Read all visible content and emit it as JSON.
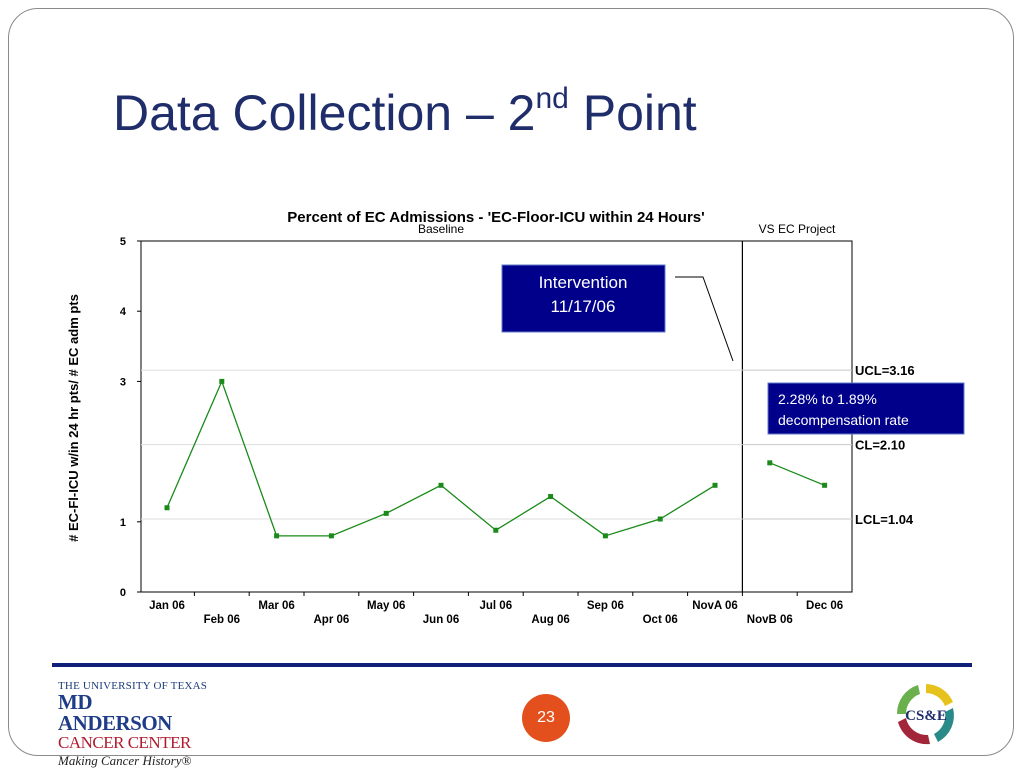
{
  "slide": {
    "title_main": "Data Collection – 2",
    "title_sup": "nd",
    "title_end": " Point",
    "page_number": "23"
  },
  "footer": {
    "logo_line1": "THE UNIVERSITY OF TEXAS",
    "logo_line2": "MD ANDERSON",
    "logo_line3": "CANCER CENTER",
    "logo_line4": "Making Cancer History®",
    "cse_logo_text": "CS&E"
  },
  "annotations": {
    "intervention_line1": "Intervention",
    "intervention_line2": "11/17/06",
    "rate_line1": "2.28% to 1.89%",
    "rate_line2": "decompensation rate",
    "baseline": "Baseline",
    "project": "VS EC Project"
  },
  "colors": {
    "title": "#1f2d6b",
    "series": "#1a8a1a",
    "annotation_box": "#00008b",
    "page_badge": "#e3501d",
    "footer_rule": "#0f1f7a"
  },
  "chart_data": {
    "type": "line",
    "title": "Percent of EC Admissions - 'EC-Floor-ICU within 24 Hours'",
    "ylabel": "# EC-Fl-ICU w/in 24 hr pts/ # EC adm pts",
    "xlabel": "",
    "ylim": [
      0,
      5
    ],
    "yticks": [
      "0",
      "1",
      "3",
      "4",
      "5"
    ],
    "ytick_values": [
      0,
      1,
      3,
      4,
      5
    ],
    "categories": [
      "Jan 06",
      "Feb 06",
      "Mar 06",
      "Apr 06",
      "May 06",
      "Jun 06",
      "Jul 06",
      "Aug 06",
      "Sep 06",
      "Oct 06",
      "NovA 06",
      "NovB 06",
      "Dec 06"
    ],
    "series": [
      {
        "values": [
          1.2,
          3.0,
          0.8,
          0.8,
          1.12,
          1.52,
          0.88,
          1.36,
          0.8,
          1.04,
          1.52,
          null,
          null
        ]
      },
      {
        "values": [
          null,
          null,
          null,
          null,
          null,
          null,
          null,
          null,
          null,
          null,
          null,
          1.84,
          1.52
        ]
      }
    ],
    "control_limits": [
      {
        "label": "UCL=3.16",
        "value": 3.16
      },
      {
        "label": "CL=2.10",
        "value": 2.1
      },
      {
        "label": "LCL=1.04",
        "value": 1.04
      }
    ],
    "grid": false,
    "legend": "none"
  }
}
